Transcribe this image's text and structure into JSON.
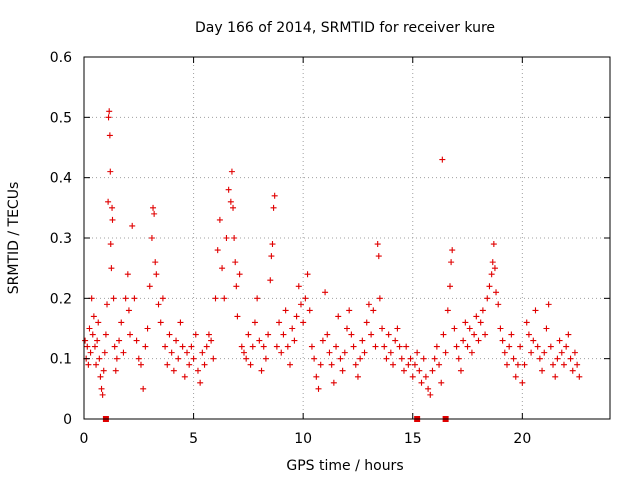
{
  "chart_data": {
    "type": "scatter",
    "title": "Day 166 of 2014, SRMTID for receiver kure",
    "xlabel": "GPS time / hours",
    "ylabel": "SRMTID / TECUs",
    "xlim": [
      0,
      24
    ],
    "ylim": [
      0,
      0.6
    ],
    "xticks": [
      0,
      5,
      10,
      15,
      20
    ],
    "xtick_labels": [
      "0",
      "5",
      "10",
      "15",
      "20"
    ],
    "yticks": [
      0,
      0.1,
      0.2,
      0.3,
      0.4,
      0.5,
      0.6
    ],
    "ytick_labels": [
      "0",
      "0.1",
      "0.2",
      "0.3",
      "0.4",
      "0.5",
      "0.6"
    ],
    "grid": true,
    "marker": "+",
    "color": "#e00000",
    "series_name": "SRMTID",
    "points": [
      [
        0.05,
        0.13
      ],
      [
        0.1,
        0.1
      ],
      [
        0.15,
        0.12
      ],
      [
        0.2,
        0.09
      ],
      [
        0.25,
        0.15
      ],
      [
        0.3,
        0.11
      ],
      [
        0.35,
        0.2
      ],
      [
        0.4,
        0.14
      ],
      [
        0.45,
        0.17
      ],
      [
        0.5,
        0.12
      ],
      [
        0.55,
        0.09
      ],
      [
        0.6,
        0.13
      ],
      [
        0.65,
        0.16
      ],
      [
        0.7,
        0.1
      ],
      [
        0.75,
        0.07
      ],
      [
        0.8,
        0.05
      ],
      [
        0.85,
        0.04
      ],
      [
        0.9,
        0.08
      ],
      [
        0.95,
        0.11
      ],
      [
        1.0,
        0.14
      ],
      [
        1.05,
        0.19
      ],
      [
        1.1,
        0.36
      ],
      [
        1.12,
        0.5
      ],
      [
        1.15,
        0.51
      ],
      [
        1.18,
        0.47
      ],
      [
        1.2,
        0.41
      ],
      [
        1.22,
        0.29
      ],
      [
        1.25,
        0.25
      ],
      [
        1.28,
        0.35
      ],
      [
        1.3,
        0.33
      ],
      [
        1.35,
        0.2
      ],
      [
        1.4,
        0.12
      ],
      [
        1.45,
        0.08
      ],
      [
        1.5,
        0.1
      ],
      [
        1.6,
        0.13
      ],
      [
        1.7,
        0.16
      ],
      [
        1.8,
        0.11
      ],
      [
        1.9,
        0.2
      ],
      [
        2.0,
        0.24
      ],
      [
        2.05,
        0.18
      ],
      [
        2.1,
        0.14
      ],
      [
        2.2,
        0.32
      ],
      [
        2.3,
        0.2
      ],
      [
        2.4,
        0.13
      ],
      [
        2.5,
        0.1
      ],
      [
        2.6,
        0.09
      ],
      [
        2.7,
        0.05
      ],
      [
        2.8,
        0.12
      ],
      [
        2.9,
        0.15
      ],
      [
        3.0,
        0.22
      ],
      [
        3.1,
        0.3
      ],
      [
        3.15,
        0.35
      ],
      [
        3.2,
        0.34
      ],
      [
        3.25,
        0.26
      ],
      [
        3.3,
        0.24
      ],
      [
        3.4,
        0.19
      ],
      [
        3.5,
        0.16
      ],
      [
        3.6,
        0.2
      ],
      [
        3.7,
        0.12
      ],
      [
        3.8,
        0.09
      ],
      [
        3.9,
        0.14
      ],
      [
        4.0,
        0.11
      ],
      [
        4.1,
        0.08
      ],
      [
        4.2,
        0.13
      ],
      [
        4.3,
        0.1
      ],
      [
        4.4,
        0.16
      ],
      [
        4.5,
        0.12
      ],
      [
        4.6,
        0.07
      ],
      [
        4.7,
        0.11
      ],
      [
        4.8,
        0.09
      ],
      [
        4.9,
        0.12
      ],
      [
        5.0,
        0.1
      ],
      [
        5.1,
        0.14
      ],
      [
        5.2,
        0.08
      ],
      [
        5.3,
        0.06
      ],
      [
        5.4,
        0.11
      ],
      [
        5.5,
        0.09
      ],
      [
        5.6,
        0.12
      ],
      [
        5.7,
        0.14
      ],
      [
        5.8,
        0.13
      ],
      [
        5.9,
        0.1
      ],
      [
        6.0,
        0.2
      ],
      [
        6.1,
        0.28
      ],
      [
        6.2,
        0.33
      ],
      [
        6.3,
        0.25
      ],
      [
        6.4,
        0.2
      ],
      [
        6.5,
        0.3
      ],
      [
        6.6,
        0.38
      ],
      [
        6.7,
        0.36
      ],
      [
        6.75,
        0.41
      ],
      [
        6.8,
        0.35
      ],
      [
        6.85,
        0.3
      ],
      [
        6.9,
        0.26
      ],
      [
        6.95,
        0.22
      ],
      [
        7.0,
        0.17
      ],
      [
        7.1,
        0.24
      ],
      [
        7.2,
        0.12
      ],
      [
        7.3,
        0.11
      ],
      [
        7.4,
        0.1
      ],
      [
        7.5,
        0.14
      ],
      [
        7.6,
        0.09
      ],
      [
        7.7,
        0.12
      ],
      [
        7.8,
        0.16
      ],
      [
        7.9,
        0.2
      ],
      [
        8.0,
        0.13
      ],
      [
        8.1,
        0.08
      ],
      [
        8.2,
        0.12
      ],
      [
        8.3,
        0.1
      ],
      [
        8.4,
        0.14
      ],
      [
        8.5,
        0.23
      ],
      [
        8.55,
        0.27
      ],
      [
        8.6,
        0.29
      ],
      [
        8.65,
        0.35
      ],
      [
        8.7,
        0.37
      ],
      [
        8.8,
        0.12
      ],
      [
        8.9,
        0.16
      ],
      [
        9.0,
        0.11
      ],
      [
        9.1,
        0.14
      ],
      [
        9.2,
        0.18
      ],
      [
        9.3,
        0.12
      ],
      [
        9.4,
        0.09
      ],
      [
        9.5,
        0.15
      ],
      [
        9.6,
        0.13
      ],
      [
        9.7,
        0.17
      ],
      [
        9.8,
        0.22
      ],
      [
        9.9,
        0.19
      ],
      [
        10.0,
        0.16
      ],
      [
        10.1,
        0.2
      ],
      [
        10.2,
        0.24
      ],
      [
        10.3,
        0.18
      ],
      [
        10.4,
        0.12
      ],
      [
        10.5,
        0.1
      ],
      [
        10.6,
        0.07
      ],
      [
        10.7,
        0.05
      ],
      [
        10.8,
        0.09
      ],
      [
        10.9,
        0.13
      ],
      [
        11.0,
        0.21
      ],
      [
        11.1,
        0.14
      ],
      [
        11.2,
        0.11
      ],
      [
        11.3,
        0.09
      ],
      [
        11.4,
        0.06
      ],
      [
        11.5,
        0.12
      ],
      [
        11.6,
        0.17
      ],
      [
        11.7,
        0.1
      ],
      [
        11.8,
        0.08
      ],
      [
        11.9,
        0.11
      ],
      [
        12.0,
        0.15
      ],
      [
        12.1,
        0.18
      ],
      [
        12.2,
        0.14
      ],
      [
        12.3,
        0.12
      ],
      [
        12.4,
        0.09
      ],
      [
        12.5,
        0.07
      ],
      [
        12.6,
        0.1
      ],
      [
        12.7,
        0.13
      ],
      [
        12.8,
        0.11
      ],
      [
        12.9,
        0.16
      ],
      [
        13.0,
        0.19
      ],
      [
        13.1,
        0.14
      ],
      [
        13.2,
        0.18
      ],
      [
        13.3,
        0.12
      ],
      [
        13.4,
        0.29
      ],
      [
        13.45,
        0.27
      ],
      [
        13.5,
        0.2
      ],
      [
        13.6,
        0.15
      ],
      [
        13.7,
        0.12
      ],
      [
        13.8,
        0.1
      ],
      [
        13.9,
        0.14
      ],
      [
        14.0,
        0.11
      ],
      [
        14.1,
        0.09
      ],
      [
        14.2,
        0.13
      ],
      [
        14.3,
        0.15
      ],
      [
        14.4,
        0.12
      ],
      [
        14.5,
        0.1
      ],
      [
        14.6,
        0.08
      ],
      [
        14.7,
        0.12
      ],
      [
        14.8,
        0.09
      ],
      [
        14.9,
        0.1
      ],
      [
        15.0,
        0.07
      ],
      [
        15.1,
        0.09
      ],
      [
        15.2,
        0.11
      ],
      [
        15.3,
        0.08
      ],
      [
        15.4,
        0.06
      ],
      [
        15.5,
        0.1
      ],
      [
        15.6,
        0.07
      ],
      [
        15.7,
        0.05
      ],
      [
        15.8,
        0.04
      ],
      [
        15.9,
        0.08
      ],
      [
        16.0,
        0.1
      ],
      [
        16.1,
        0.12
      ],
      [
        16.2,
        0.09
      ],
      [
        16.3,
        0.06
      ],
      [
        16.35,
        0.43
      ],
      [
        16.4,
        0.14
      ],
      [
        16.5,
        0.11
      ],
      [
        16.6,
        0.18
      ],
      [
        16.7,
        0.22
      ],
      [
        16.75,
        0.26
      ],
      [
        16.8,
        0.28
      ],
      [
        16.9,
        0.15
      ],
      [
        17.0,
        0.12
      ],
      [
        17.1,
        0.1
      ],
      [
        17.2,
        0.08
      ],
      [
        17.3,
        0.13
      ],
      [
        17.4,
        0.16
      ],
      [
        17.5,
        0.12
      ],
      [
        17.6,
        0.15
      ],
      [
        17.7,
        0.11
      ],
      [
        17.8,
        0.14
      ],
      [
        17.9,
        0.17
      ],
      [
        18.0,
        0.13
      ],
      [
        18.1,
        0.16
      ],
      [
        18.2,
        0.18
      ],
      [
        18.3,
        0.14
      ],
      [
        18.4,
        0.2
      ],
      [
        18.5,
        0.22
      ],
      [
        18.6,
        0.24
      ],
      [
        18.65,
        0.26
      ],
      [
        18.7,
        0.29
      ],
      [
        18.75,
        0.25
      ],
      [
        18.8,
        0.21
      ],
      [
        18.9,
        0.19
      ],
      [
        19.0,
        0.15
      ],
      [
        19.1,
        0.13
      ],
      [
        19.2,
        0.11
      ],
      [
        19.3,
        0.09
      ],
      [
        19.4,
        0.12
      ],
      [
        19.5,
        0.14
      ],
      [
        19.6,
        0.1
      ],
      [
        19.7,
        0.07
      ],
      [
        19.8,
        0.09
      ],
      [
        19.9,
        0.12
      ],
      [
        20.0,
        0.06
      ],
      [
        20.1,
        0.09
      ],
      [
        20.2,
        0.16
      ],
      [
        20.3,
        0.14
      ],
      [
        20.4,
        0.11
      ],
      [
        20.5,
        0.13
      ],
      [
        20.6,
        0.18
      ],
      [
        20.7,
        0.12
      ],
      [
        20.8,
        0.1
      ],
      [
        20.9,
        0.08
      ],
      [
        21.0,
        0.11
      ],
      [
        21.1,
        0.15
      ],
      [
        21.2,
        0.19
      ],
      [
        21.3,
        0.12
      ],
      [
        21.4,
        0.09
      ],
      [
        21.5,
        0.07
      ],
      [
        21.6,
        0.1
      ],
      [
        21.7,
        0.13
      ],
      [
        21.8,
        0.11
      ],
      [
        21.9,
        0.09
      ],
      [
        22.0,
        0.12
      ],
      [
        22.1,
        0.14
      ],
      [
        22.2,
        0.1
      ],
      [
        22.3,
        0.08
      ],
      [
        22.4,
        0.11
      ],
      [
        22.5,
        0.09
      ],
      [
        22.6,
        0.07
      ]
    ],
    "axis_markers": [
      1.0,
      15.2,
      16.5
    ]
  }
}
